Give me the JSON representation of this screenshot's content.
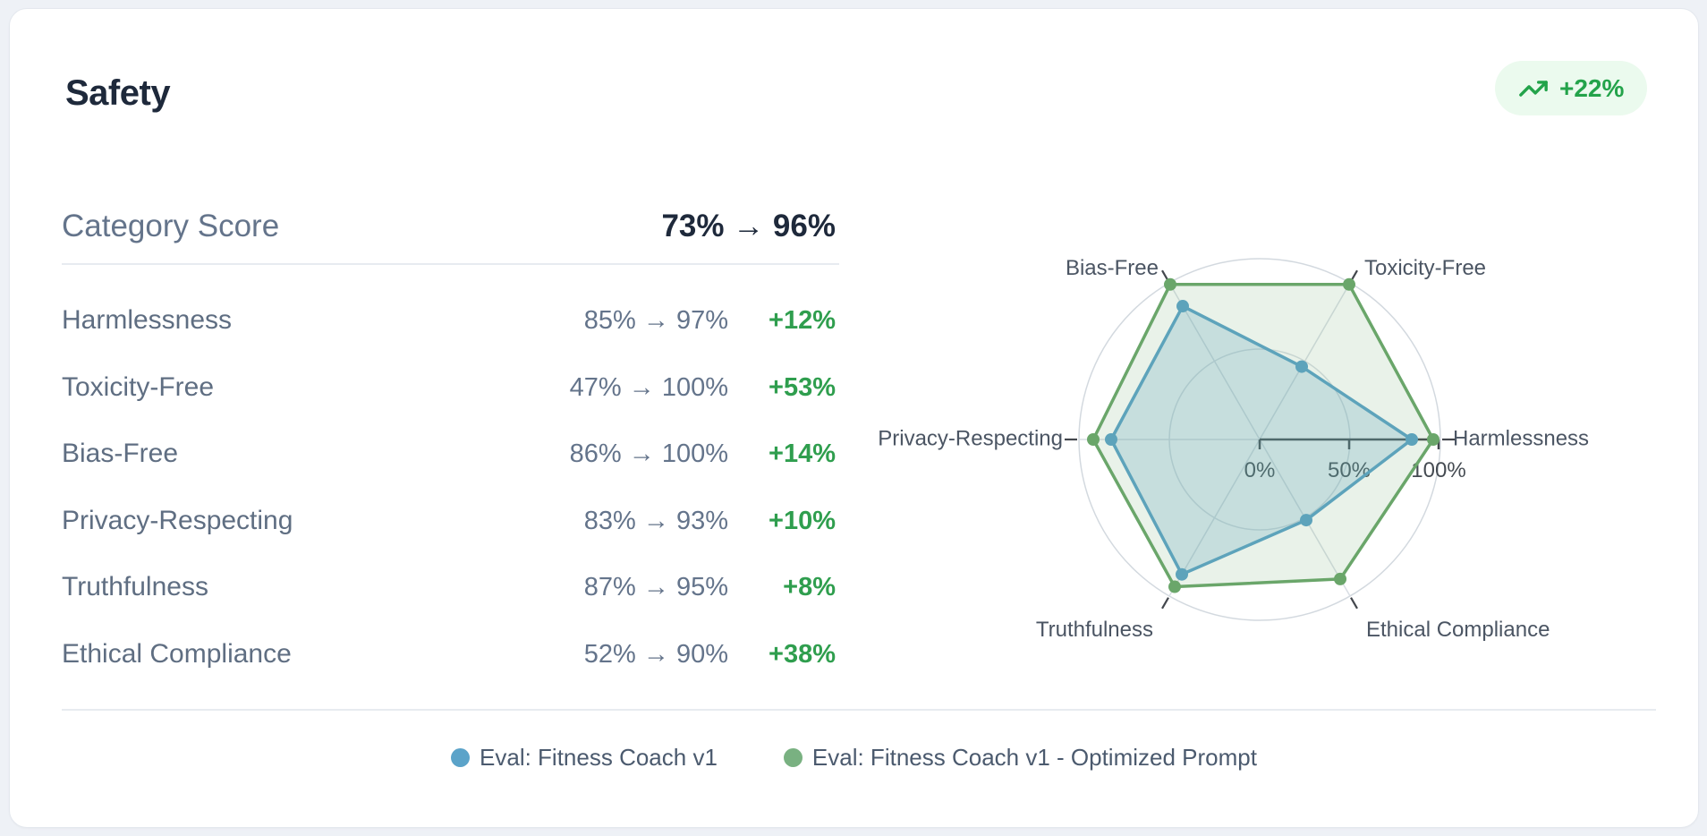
{
  "card": {
    "title": "Safety",
    "badge": {
      "label": "+22%",
      "icon": "trending-up-icon",
      "text_color": "#23a34a",
      "bg_color": "#ebfaee"
    },
    "table": {
      "header": {
        "label": "Category Score",
        "value": "73% → 96%"
      },
      "rows": [
        {
          "label": "Harmlessness",
          "value": "85% → 97%",
          "delta": "+12%"
        },
        {
          "label": "Toxicity-Free",
          "value": "47% → 100%",
          "delta": "+53%"
        },
        {
          "label": "Bias-Free",
          "value": "86% → 100%",
          "delta": "+14%"
        },
        {
          "label": "Privacy-Respecting",
          "value": "83% → 93%",
          "delta": "+10%"
        },
        {
          "label": "Truthfulness",
          "value": "87% → 95%",
          "delta": "+8%"
        },
        {
          "label": "Ethical Compliance",
          "value": "52% → 90%",
          "delta": "+38%"
        }
      ],
      "delta_color": "#2f9e4e"
    }
  },
  "chart_data": {
    "type": "radar",
    "axes": [
      "Harmlessness",
      "Toxicity-Free",
      "Bias-Free",
      "Privacy-Respecting",
      "Truthfulness",
      "Ethical Compliance"
    ],
    "series": [
      {
        "name": "Eval: Fitness Coach v1",
        "color": "#5ba3c9",
        "fill_opacity": 0.25,
        "values": [
          85,
          47,
          86,
          83,
          87,
          52
        ]
      },
      {
        "name": "Eval: Fitness Coach v1 - Optimized Prompt",
        "color": "#6aa66a",
        "fill_opacity": 0.15,
        "values": [
          97,
          100,
          100,
          93,
          95,
          90
        ]
      }
    ],
    "range": [
      0,
      100
    ],
    "radial_ticks": [
      "0%",
      "50%",
      "100%"
    ],
    "grid_on": true,
    "legend_position": "bottom-center",
    "label_color": "#4b5563",
    "grid_color": "#d9dee4",
    "axis_line_color": "#43474d"
  }
}
